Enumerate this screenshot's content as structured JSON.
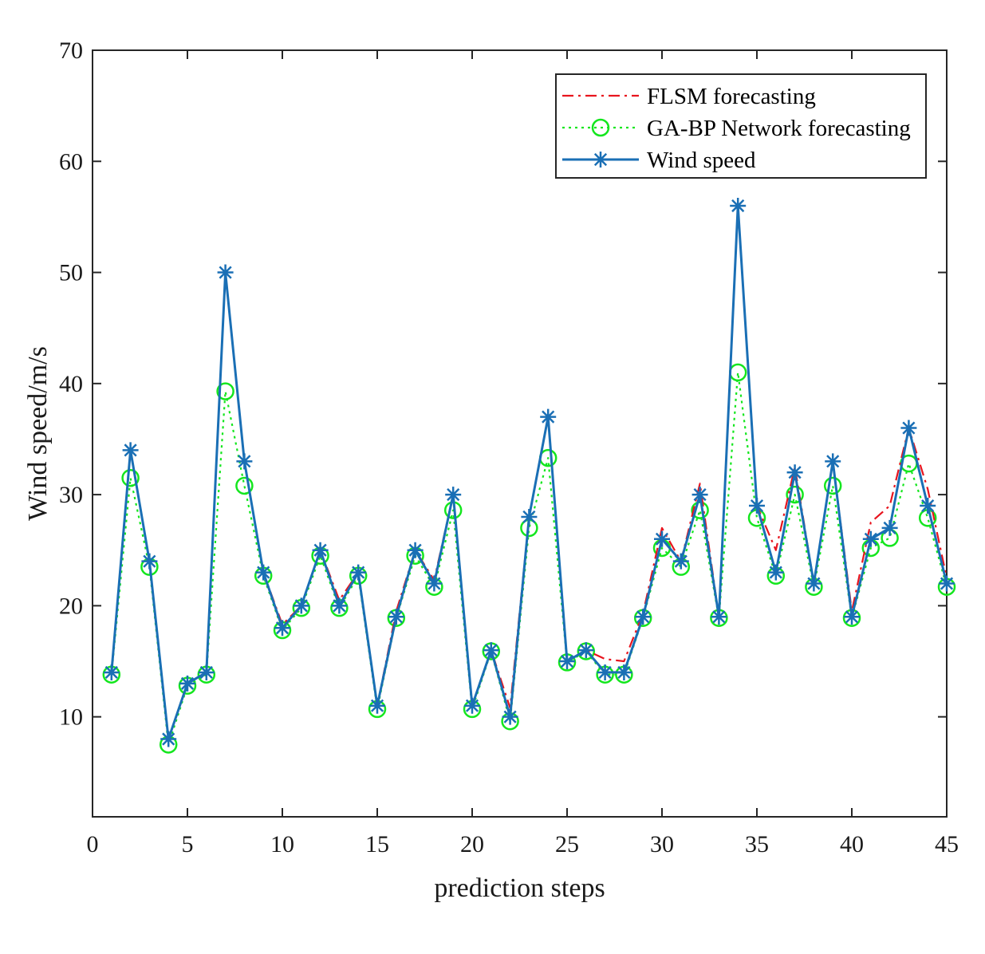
{
  "chart_data": {
    "type": "line",
    "title": "",
    "xlabel": "prediction steps",
    "ylabel": "Wind speed/m/s",
    "xlim": [
      0,
      45
    ],
    "ylim": [
      1,
      70
    ],
    "xticks": [
      0,
      5,
      10,
      15,
      20,
      25,
      30,
      35,
      40,
      45
    ],
    "yticks": [
      10,
      20,
      30,
      40,
      50,
      60,
      70
    ],
    "xtick_labels": [
      "0",
      "5",
      "10",
      "15",
      "20",
      "25",
      "30",
      "35",
      "40",
      "45"
    ],
    "ytick_labels": [
      "10",
      "20",
      "30",
      "40",
      "50",
      "60",
      "70"
    ],
    "grid": false,
    "legend_position": "top-right",
    "x": [
      1,
      2,
      3,
      4,
      5,
      6,
      7,
      8,
      9,
      10,
      11,
      12,
      13,
      14,
      15,
      16,
      17,
      18,
      19,
      20,
      21,
      22,
      23,
      24,
      25,
      26,
      27,
      28,
      29,
      30,
      31,
      32,
      33,
      34,
      35,
      36,
      37,
      38,
      39,
      40,
      41,
      42,
      43,
      44,
      45
    ],
    "series": [
      {
        "name": "FLSM forecasting",
        "color": "#e8141e",
        "style": "dash-dot",
        "marker": "none",
        "values": [
          14,
          34,
          24,
          8,
          13,
          14,
          50,
          33,
          23,
          18.3,
          20,
          25,
          20.5,
          23,
          11,
          19.5,
          25,
          22.3,
          30,
          11,
          16,
          10.8,
          28,
          37,
          15,
          16,
          15.2,
          15,
          19.3,
          27,
          24,
          31,
          19,
          56,
          29,
          25,
          32.5,
          22,
          33,
          19.5,
          27.5,
          29,
          36,
          30.5,
          22.5
        ]
      },
      {
        "name": "GA-BP Network forecasting",
        "color": "#14e61e",
        "style": "dotted",
        "marker": "circle",
        "values": [
          13.8,
          31.5,
          23.5,
          7.5,
          12.8,
          13.8,
          39.3,
          30.8,
          22.7,
          17.8,
          19.8,
          24.5,
          19.8,
          22.7,
          10.7,
          18.9,
          24.5,
          21.7,
          28.6,
          10.7,
          15.9,
          9.6,
          27,
          33.3,
          14.9,
          15.9,
          13.8,
          13.8,
          18.9,
          25.2,
          23.5,
          28.6,
          18.9,
          41,
          27.9,
          22.7,
          30,
          21.7,
          30.8,
          18.9,
          25.2,
          26.1,
          32.8,
          27.9,
          21.7
        ]
      },
      {
        "name": "Wind speed",
        "color": "#1a6fb5",
        "style": "solid",
        "marker": "asterisk",
        "values": [
          14,
          34,
          24,
          8,
          13,
          14,
          50,
          33,
          23,
          18,
          20,
          25,
          20,
          23,
          11,
          19,
          25,
          22,
          30,
          11,
          16,
          10,
          28,
          37,
          15,
          16,
          14,
          14,
          19,
          26,
          24,
          30,
          19,
          56,
          29,
          23,
          32,
          22,
          33,
          19,
          26,
          27,
          36,
          29,
          22
        ]
      }
    ]
  }
}
